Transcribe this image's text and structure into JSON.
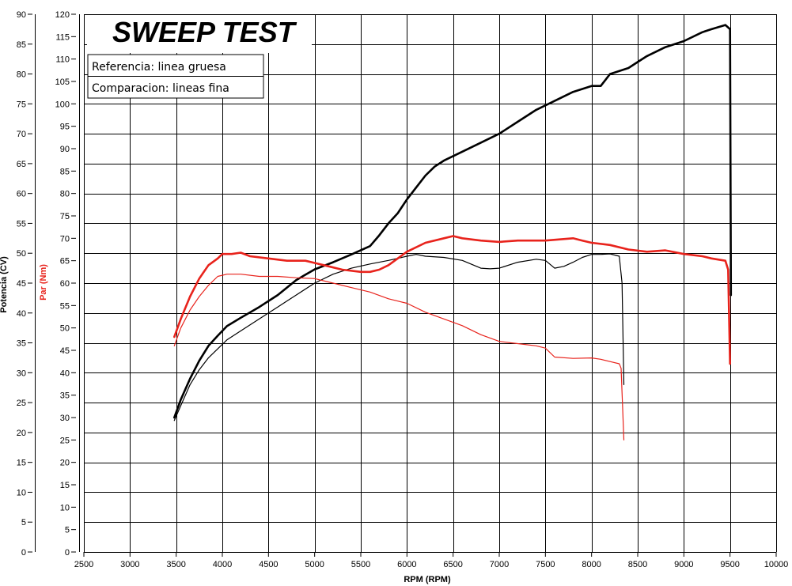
{
  "chart_data": {
    "type": "line",
    "title": "SWEEP TEST",
    "xlabel": "RPM (RPM)",
    "ylabel_power": "Potencia (CV)",
    "ylabel_torque": "Par (Nm)",
    "power_axis": {
      "ylim": [
        0,
        90
      ],
      "ticks": [
        0,
        5,
        10,
        15,
        20,
        25,
        30,
        35,
        40,
        45,
        50,
        55,
        60,
        65,
        70,
        75,
        80,
        85,
        90
      ]
    },
    "torque_axis": {
      "ylim": [
        0,
        120
      ],
      "ticks": [
        0,
        5,
        10,
        15,
        20,
        25,
        30,
        35,
        40,
        45,
        50,
        55,
        60,
        65,
        70,
        75,
        80,
        85,
        90,
        95,
        100,
        105,
        110,
        115,
        120
      ]
    },
    "x_axis": {
      "xlim": [
        2500,
        10000
      ],
      "ticks": [
        2500,
        3000,
        3500,
        4000,
        4500,
        5000,
        5500,
        6000,
        6500,
        7000,
        7500,
        8000,
        8500,
        9000,
        9500,
        10000
      ]
    },
    "legend": [
      "Referencia: linea gruesa",
      "Comparacion: lineas fina"
    ],
    "colors": {
      "power": "#000000",
      "torque": "#e8231c",
      "grid": "#000000"
    },
    "series": [
      {
        "name": "Referencia: linea gruesa",
        "quantity": "power",
        "units": "CV",
        "thick": true,
        "x": [
          3480,
          3550,
          3650,
          3750,
          3850,
          3950,
          4050,
          4200,
          4400,
          4600,
          4800,
          5000,
          5200,
          5400,
          5500,
          5600,
          5700,
          5800,
          5900,
          6000,
          6100,
          6200,
          6300,
          6400,
          6600,
          6800,
          7000,
          7200,
          7400,
          7600,
          7800,
          8000,
          8100,
          8200,
          8400,
          8500,
          8600,
          8800,
          9000,
          9200,
          9300,
          9450,
          9500,
          9510
        ],
        "y": [
          22.5,
          25.5,
          29,
          32,
          34.5,
          36.2,
          37.8,
          39.2,
          41,
          43,
          45.5,
          47.3,
          48.5,
          49.8,
          50.5,
          51.2,
          53,
          55,
          56.7,
          59,
          61,
          63,
          64.5,
          65.5,
          67,
          68.5,
          70,
          72,
          74,
          75.5,
          77,
          78,
          78,
          80,
          81,
          82,
          83,
          84.5,
          85.5,
          87,
          87.5,
          88.2,
          87.5,
          43
        ]
      },
      {
        "name": "Comparacion: lineas fina",
        "quantity": "power",
        "units": "CV",
        "thick": false,
        "x": [
          3480,
          3550,
          3650,
          3750,
          3850,
          3950,
          4050,
          4200,
          4400,
          4600,
          4800,
          5000,
          5200,
          5400,
          5600,
          5800,
          6000,
          6100,
          6200,
          6400,
          6600,
          6800,
          6900,
          7000,
          7200,
          7400,
          7500,
          7600,
          7700,
          7800,
          7900,
          8000,
          8100,
          8200,
          8300,
          8330,
          8350
        ],
        "y": [
          22,
          24.5,
          28,
          30.5,
          32.5,
          34,
          35.5,
          37,
          39,
          41,
          43,
          45,
          46.5,
          47.5,
          48.2,
          48.8,
          49.5,
          49.8,
          49.5,
          49.3,
          48.8,
          47.5,
          47.4,
          47.5,
          48.5,
          49,
          48.8,
          47.5,
          47.8,
          48.5,
          49.3,
          49.8,
          49.8,
          49.9,
          49.5,
          45,
          28
        ]
      },
      {
        "name": "Referencia: linea gruesa",
        "quantity": "torque",
        "units": "Nm",
        "thick": true,
        "x": [
          3480,
          3550,
          3650,
          3750,
          3850,
          3950,
          4000,
          4100,
          4200,
          4300,
          4500,
          4700,
          4900,
          5000,
          5100,
          5300,
          5500,
          5600,
          5700,
          5800,
          5900,
          6000,
          6200,
          6400,
          6500,
          6600,
          6800,
          7000,
          7200,
          7500,
          7800,
          7900,
          8000,
          8200,
          8400,
          8600,
          8800,
          9000,
          9200,
          9300,
          9450,
          9480,
          9500
        ],
        "y": [
          48,
          52,
          57,
          61,
          64,
          65.5,
          66.5,
          66.5,
          66.8,
          66,
          65.5,
          65,
          65,
          64.5,
          64,
          63,
          62.5,
          62.5,
          63,
          64,
          65.5,
          67,
          69,
          70,
          70.5,
          70,
          69.5,
          69.2,
          69.5,
          69.5,
          70,
          69.5,
          69,
          68.5,
          67.5,
          67,
          67.3,
          66.5,
          66,
          65.5,
          65,
          63,
          42
        ]
      },
      {
        "name": "Comparacion: lineas fina",
        "quantity": "torque",
        "units": "Nm",
        "thick": false,
        "x": [
          3480,
          3550,
          3650,
          3750,
          3850,
          3950,
          4050,
          4200,
          4400,
          4600,
          4800,
          5000,
          5200,
          5400,
          5600,
          5800,
          6000,
          6200,
          6400,
          6600,
          6800,
          7000,
          7200,
          7400,
          7500,
          7600,
          7800,
          8000,
          8100,
          8200,
          8300,
          8320,
          8350
        ],
        "y": [
          46,
          50,
          54,
          57,
          59.5,
          61.5,
          62,
          62,
          61.5,
          61.5,
          61.2,
          61,
          60,
          59,
          58,
          56.5,
          55.5,
          53.5,
          52,
          50.5,
          48.5,
          47,
          46.5,
          46,
          45.5,
          43.5,
          43.2,
          43.3,
          43,
          42.5,
          42,
          41,
          25
        ]
      }
    ]
  }
}
